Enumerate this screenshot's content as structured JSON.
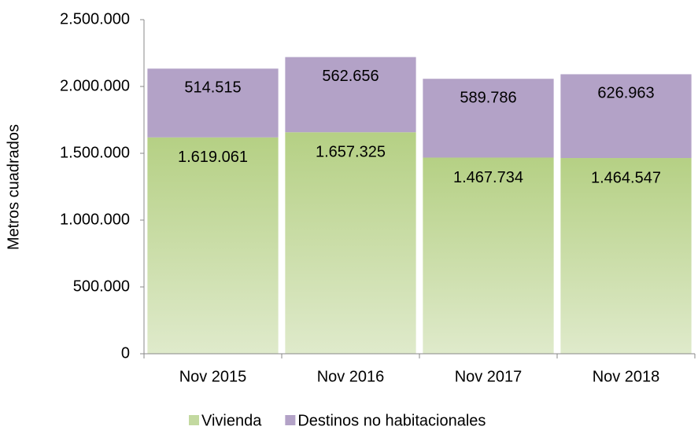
{
  "chart_data": {
    "type": "stacked_bar",
    "y_label": "Metros cuadrados",
    "categories": [
      "Nov 2015",
      "Nov 2016",
      "Nov 2017",
      "Nov 2018"
    ],
    "series": [
      {
        "name": "Vivienda",
        "color": "#c3d9a0",
        "values": [
          1619061,
          1657325,
          1467734,
          1464547
        ],
        "value_labels": [
          "1.619.061",
          "1.657.325",
          "1.467.734",
          "1.464.547"
        ]
      },
      {
        "name": "Destinos no habitacionales",
        "color": "#b3a2c7",
        "values": [
          514515,
          562656,
          589786,
          626963
        ],
        "value_labels": [
          "514.515",
          "562.656",
          "589.786",
          "626.963"
        ]
      }
    ],
    "ylim": [
      0,
      2500000
    ],
    "yticks": [
      0,
      {
        "value": 500000,
        "label": "500.000"
      },
      {
        "value": 1000000,
        "label": "1.000.000"
      },
      {
        "value": 1500000,
        "label": "1.500.000"
      },
      {
        "value": 2000000,
        "label": "2.000.000"
      },
      {
        "value": 2500000,
        "label": "2.500.000"
      }
    ],
    "legend": "bottom"
  }
}
